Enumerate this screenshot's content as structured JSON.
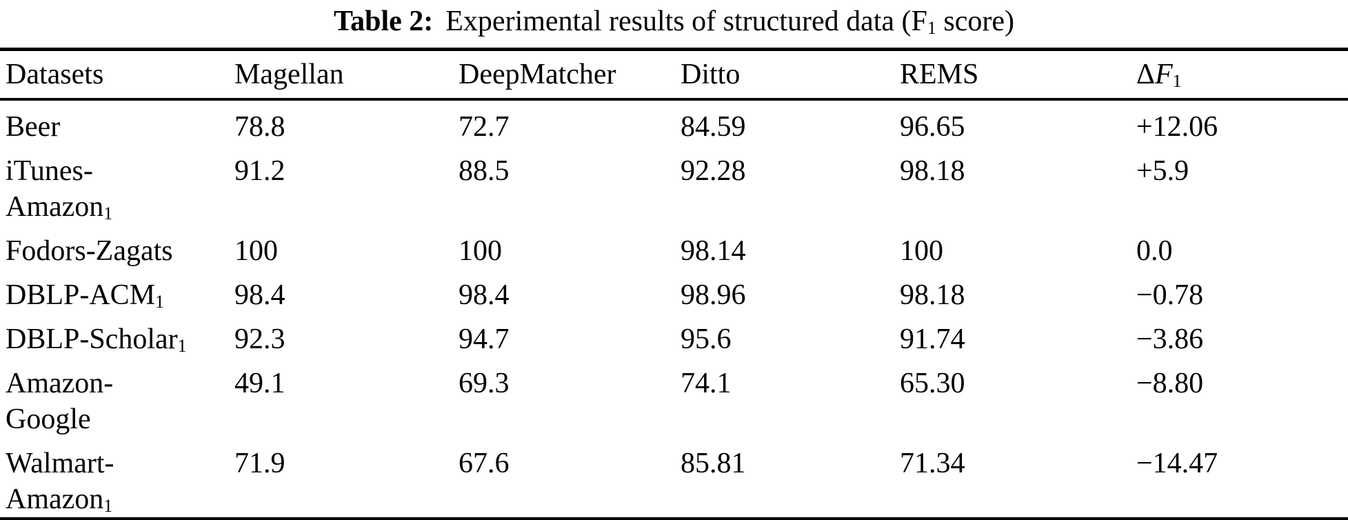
{
  "caption": {
    "label": "Table 2:",
    "segments": [
      {
        "t": "Experimental results of structured data (F"
      },
      {
        "t": "1",
        "sub": true
      },
      {
        "t": " score)"
      }
    ]
  },
  "table": {
    "columns": [
      {
        "name": "datasets",
        "segments": [
          {
            "t": "Datasets"
          }
        ]
      },
      {
        "name": "magellan",
        "segments": [
          {
            "t": "Magellan"
          }
        ]
      },
      {
        "name": "deepmatcher",
        "segments": [
          {
            "t": "DeepMatcher"
          }
        ]
      },
      {
        "name": "ditto",
        "segments": [
          {
            "t": "Ditto"
          }
        ]
      },
      {
        "name": "rems",
        "segments": [
          {
            "t": "REMS"
          }
        ]
      },
      {
        "name": "delta-f1",
        "segments": [
          {
            "t": "Δ"
          },
          {
            "t": "F",
            "italic": true
          },
          {
            "t": "1",
            "sub": true
          }
        ]
      }
    ],
    "rows": [
      {
        "dataset_lines": [
          [
            {
              "t": "Beer"
            }
          ]
        ],
        "values": [
          "78.8",
          "72.7",
          "84.59",
          "96.65",
          "+12.06"
        ]
      },
      {
        "dataset_lines": [
          [
            {
              "t": "iTunes-"
            }
          ],
          [
            {
              "t": "Amazon"
            },
            {
              "t": "1",
              "sub": true
            }
          ]
        ],
        "values": [
          "91.2",
          "88.5",
          "92.28",
          "98.18",
          "+5.9"
        ]
      },
      {
        "dataset_lines": [
          [
            {
              "t": "Fodors-Zagats"
            }
          ]
        ],
        "values": [
          "100",
          "100",
          "98.14",
          "100",
          "0.0"
        ]
      },
      {
        "dataset_lines": [
          [
            {
              "t": "DBLP-ACM"
            },
            {
              "t": "1",
              "sub": true
            }
          ]
        ],
        "values": [
          "98.4",
          "98.4",
          "98.96",
          "98.18",
          "−0.78"
        ]
      },
      {
        "dataset_lines": [
          [
            {
              "t": "DBLP-Scholar"
            },
            {
              "t": "1",
              "sub": true
            }
          ]
        ],
        "values": [
          "92.3",
          "94.7",
          "95.6",
          "91.74",
          "−3.86"
        ]
      },
      {
        "dataset_lines": [
          [
            {
              "t": "Amazon-"
            }
          ],
          [
            {
              "t": "Google"
            }
          ]
        ],
        "values": [
          "49.1",
          "69.3",
          "74.1",
          "65.30",
          "−8.80"
        ]
      },
      {
        "dataset_lines": [
          [
            {
              "t": "Walmart-"
            }
          ],
          [
            {
              "t": "Amazon"
            },
            {
              "t": "1",
              "sub": true
            }
          ]
        ],
        "values": [
          "71.9",
          "67.6",
          "85.81",
          "71.34",
          "−14.47"
        ]
      }
    ]
  },
  "colors": {
    "text": "#000000",
    "background": "#ffffff",
    "rule": "#000000"
  }
}
